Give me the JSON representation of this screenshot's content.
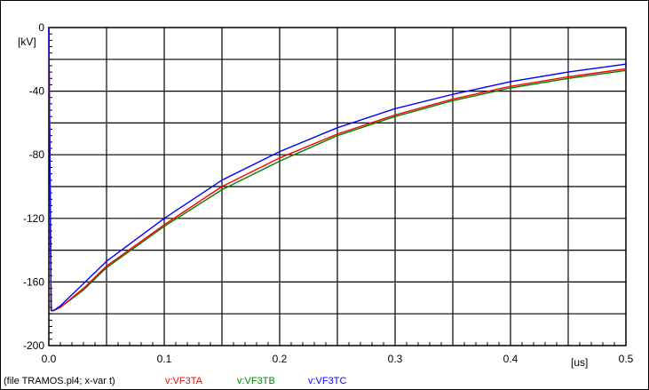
{
  "chart_data": {
    "type": "line",
    "ylabel": "[kV]",
    "xlabel": "[us]",
    "xlim": [
      0,
      0.5
    ],
    "ylim": [
      -200,
      0
    ],
    "grid": true,
    "x_ticks": [
      "0.0",
      "0.1",
      "0.2",
      "0.3",
      "0.4",
      "0.5"
    ],
    "y_ticks": [
      "0",
      "-40",
      "-80",
      "-120",
      "-160",
      "-200"
    ],
    "footer": "(file TRAMOS.pl4; x-var t)",
    "series": [
      {
        "name": "v:VF3TA",
        "color": "#ff0000",
        "x": [
          0,
          0.002,
          0.004,
          0.01,
          0.03,
          0.05,
          0.1,
          0.15,
          0.2,
          0.25,
          0.3,
          0.35,
          0.4,
          0.45,
          0.5
        ],
        "y": [
          0,
          -178,
          -178,
          -176,
          -164,
          -150,
          -124,
          -100,
          -82,
          -67,
          -55,
          -45,
          -37,
          -31,
          -26
        ]
      },
      {
        "name": "v:VF3TB",
        "color": "#008000",
        "x": [
          0,
          0.002,
          0.004,
          0.01,
          0.03,
          0.05,
          0.1,
          0.15,
          0.2,
          0.25,
          0.3,
          0.35,
          0.4,
          0.45,
          0.5
        ],
        "y": [
          0,
          -178,
          -178,
          -176,
          -165,
          -151,
          -125,
          -102,
          -84,
          -68,
          -56,
          -46,
          -38,
          -32,
          -27
        ]
      },
      {
        "name": "v:VF3TC",
        "color": "#0000ff",
        "x": [
          0,
          0.002,
          0.004,
          0.01,
          0.03,
          0.05,
          0.1,
          0.15,
          0.2,
          0.25,
          0.3,
          0.35,
          0.4,
          0.45,
          0.5
        ],
        "y": [
          0,
          -178,
          -178,
          -175,
          -161,
          -147,
          -120,
          -96,
          -78,
          -63,
          -51,
          -42,
          -34,
          -28,
          -23
        ]
      }
    ]
  }
}
